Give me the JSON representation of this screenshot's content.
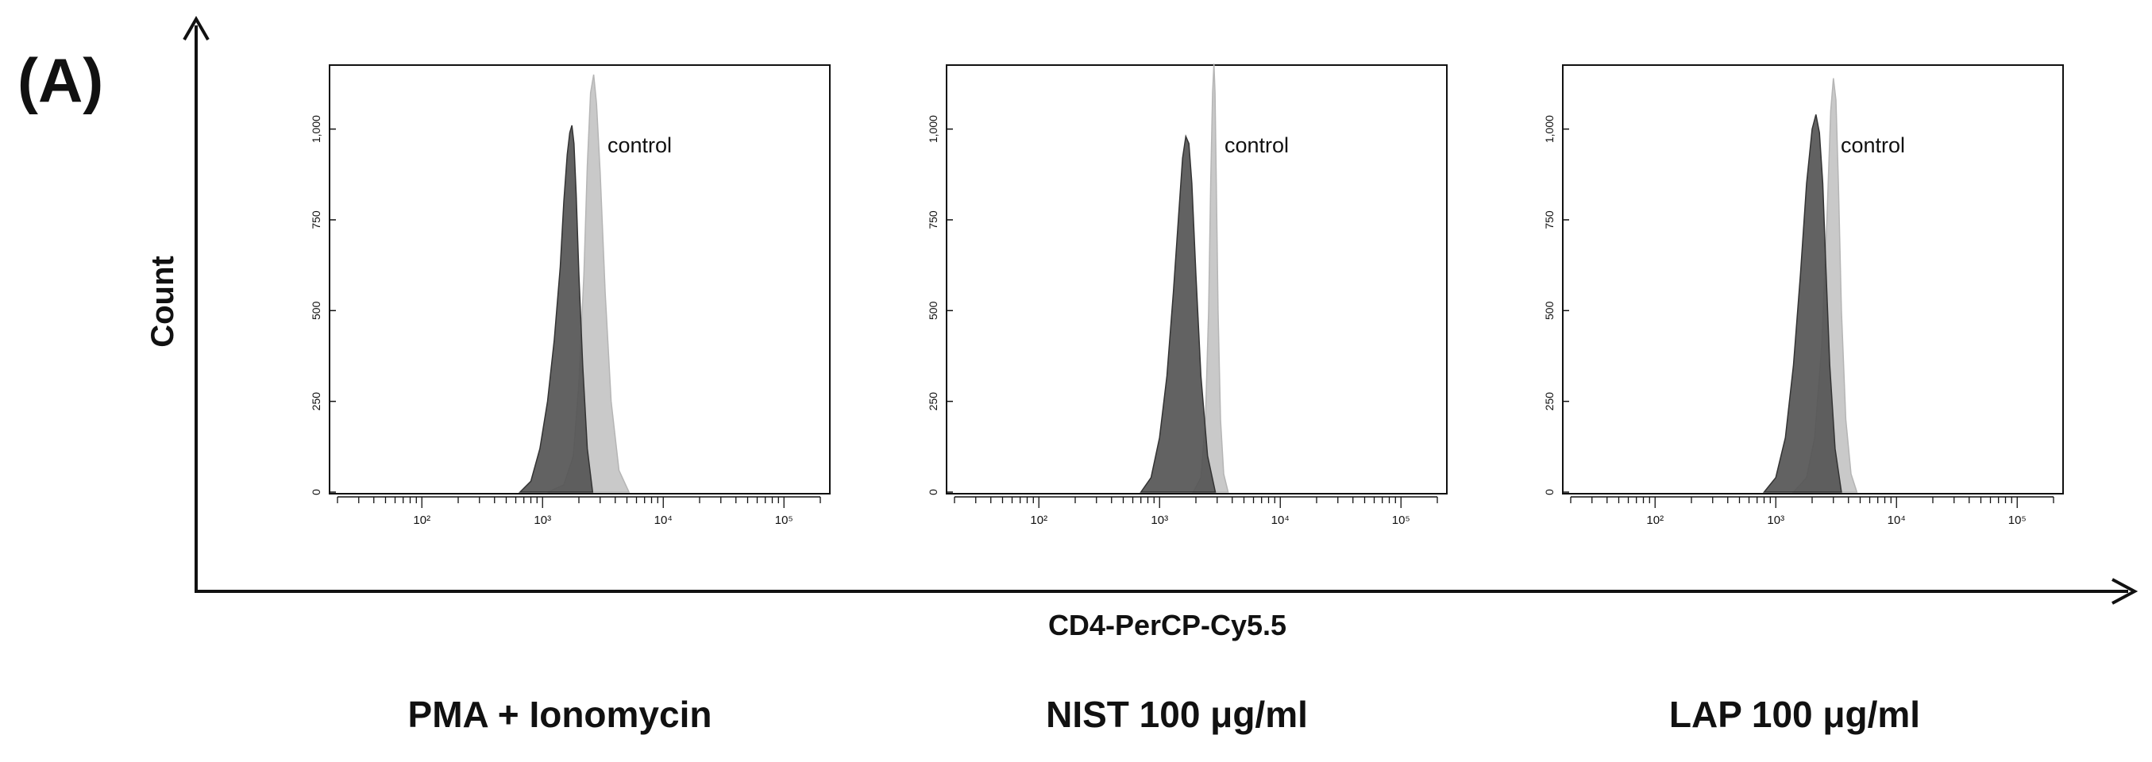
{
  "figure": {
    "panel_label": "(A)",
    "y_axis_label": "Count",
    "x_axis_label": "CD4-PerCP-Cy5.5",
    "colors": {
      "sample_fill": "#555555",
      "sample_stroke": "#333333",
      "control_fill": "#c9c9c9",
      "frame": "#111111",
      "text": "#111111"
    }
  },
  "chart_data": [
    {
      "type": "area",
      "title": "PMA + Ionomycin",
      "xlabel": "",
      "ylabel": "",
      "x_scale": "log",
      "xlim": [
        20,
        200000
      ],
      "ylim": [
        0,
        1150
      ],
      "x_tick_labels": [
        "10²",
        "10³",
        "10⁴",
        "10⁵"
      ],
      "x_ticks": [
        100,
        1000,
        10000,
        100000
      ],
      "y_tick_labels": [
        "0",
        "250",
        "500",
        "750",
        "1,000"
      ],
      "y_ticks": [
        0,
        250,
        500,
        750,
        1000
      ],
      "annotation": "control",
      "series": [
        {
          "name": "control",
          "x": [
            1100,
            1500,
            1800,
            2000,
            2200,
            2350,
            2500,
            2650,
            2800,
            3000,
            3300,
            3700,
            4300,
            5200
          ],
          "y": [
            0,
            20,
            100,
            300,
            600,
            900,
            1100,
            1150,
            1070,
            880,
            550,
            250,
            60,
            0
          ]
        },
        {
          "name": "",
          "x": [
            650,
            800,
            950,
            1100,
            1250,
            1400,
            1500,
            1600,
            1680,
            1750,
            1820,
            1900,
            2000,
            2150,
            2350,
            2600
          ],
          "y": [
            0,
            30,
            120,
            250,
            420,
            620,
            800,
            930,
            990,
            1010,
            960,
            820,
            600,
            350,
            120,
            0
          ]
        }
      ]
    },
    {
      "type": "area",
      "title": "NIST 100 μg/ml",
      "xlabel": "",
      "ylabel": "",
      "x_scale": "log",
      "xlim": [
        20,
        200000
      ],
      "ylim": [
        0,
        1150
      ],
      "x_tick_labels": [
        "10²",
        "10³",
        "10⁴",
        "10⁵"
      ],
      "x_ticks": [
        100,
        1000,
        10000,
        100000
      ],
      "y_tick_labels": [
        "0",
        "250",
        "500",
        "750",
        "1,000"
      ],
      "y_ticks": [
        0,
        250,
        500,
        750,
        1000
      ],
      "annotation": "control",
      "series": [
        {
          "name": "control",
          "x": [
            1900,
            2200,
            2400,
            2550,
            2650,
            2750,
            2820,
            2880,
            2950,
            3050,
            3200,
            3400,
            3700
          ],
          "y": [
            0,
            40,
            200,
            500,
            850,
            1100,
            1180,
            1100,
            850,
            500,
            200,
            50,
            0
          ]
        },
        {
          "name": "",
          "x": [
            700,
            850,
            1000,
            1150,
            1300,
            1450,
            1550,
            1650,
            1750,
            1850,
            2000,
            2200,
            2500,
            2900
          ],
          "y": [
            0,
            40,
            150,
            320,
            550,
            780,
            920,
            980,
            960,
            850,
            600,
            320,
            100,
            0
          ]
        }
      ]
    },
    {
      "type": "area",
      "title": "LAP 100 μg/ml",
      "xlabel": "",
      "ylabel": "",
      "x_scale": "log",
      "xlim": [
        20,
        200000
      ],
      "ylim": [
        0,
        1150
      ],
      "x_tick_labels": [
        "10²",
        "10³",
        "10⁴",
        "10⁵"
      ],
      "x_ticks": [
        100,
        1000,
        10000,
        100000
      ],
      "y_tick_labels": [
        "0",
        "250",
        "500",
        "750",
        "1,000"
      ],
      "y_ticks": [
        0,
        250,
        500,
        750,
        1000
      ],
      "annotation": "control",
      "series": [
        {
          "name": "control",
          "x": [
            1400,
            1800,
            2100,
            2400,
            2650,
            2850,
            3000,
            3150,
            3300,
            3500,
            3800,
            4200,
            4700
          ],
          "y": [
            0,
            40,
            150,
            400,
            750,
            1050,
            1140,
            1080,
            850,
            500,
            200,
            50,
            0
          ]
        },
        {
          "name": "",
          "x": [
            800,
            1000,
            1200,
            1400,
            1600,
            1800,
            2000,
            2150,
            2300,
            2450,
            2600,
            2800,
            3100,
            3500
          ],
          "y": [
            0,
            40,
            150,
            350,
            600,
            850,
            1000,
            1040,
            990,
            850,
            620,
            350,
            120,
            0
          ]
        }
      ]
    }
  ]
}
